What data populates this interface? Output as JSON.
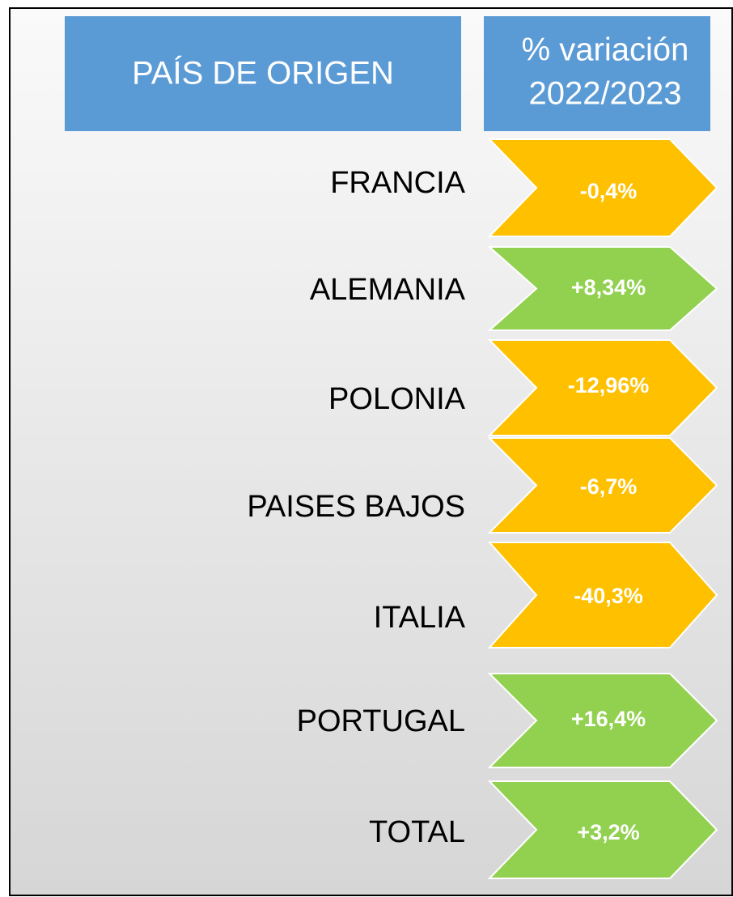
{
  "header": {
    "country": "PAÍS DE ORIGEN",
    "variation": [
      "% variación",
      "2022/2023"
    ]
  },
  "table": {
    "rows": [
      {
        "country": "FRANCIA",
        "value": "-0,4%",
        "color": "#ffc000"
      },
      {
        "country": "ALEMANIA",
        "value": "+8,34%",
        "color": "#92d050"
      },
      {
        "country": "POLONIA",
        "value": "-12,96%",
        "color": "#ffc000"
      },
      {
        "country": "PAISES BAJOS",
        "value": "-6,7%",
        "color": "#ffc000"
      },
      {
        "country": "ITALIA",
        "value": "-40,3%",
        "color": "#ffc000"
      },
      {
        "country": "PORTUGAL",
        "value": "+16,4%",
        "color": "#92d050"
      },
      {
        "country": "TOTAL",
        "value": "+3,2%",
        "color": "#92d050"
      }
    ]
  }
}
